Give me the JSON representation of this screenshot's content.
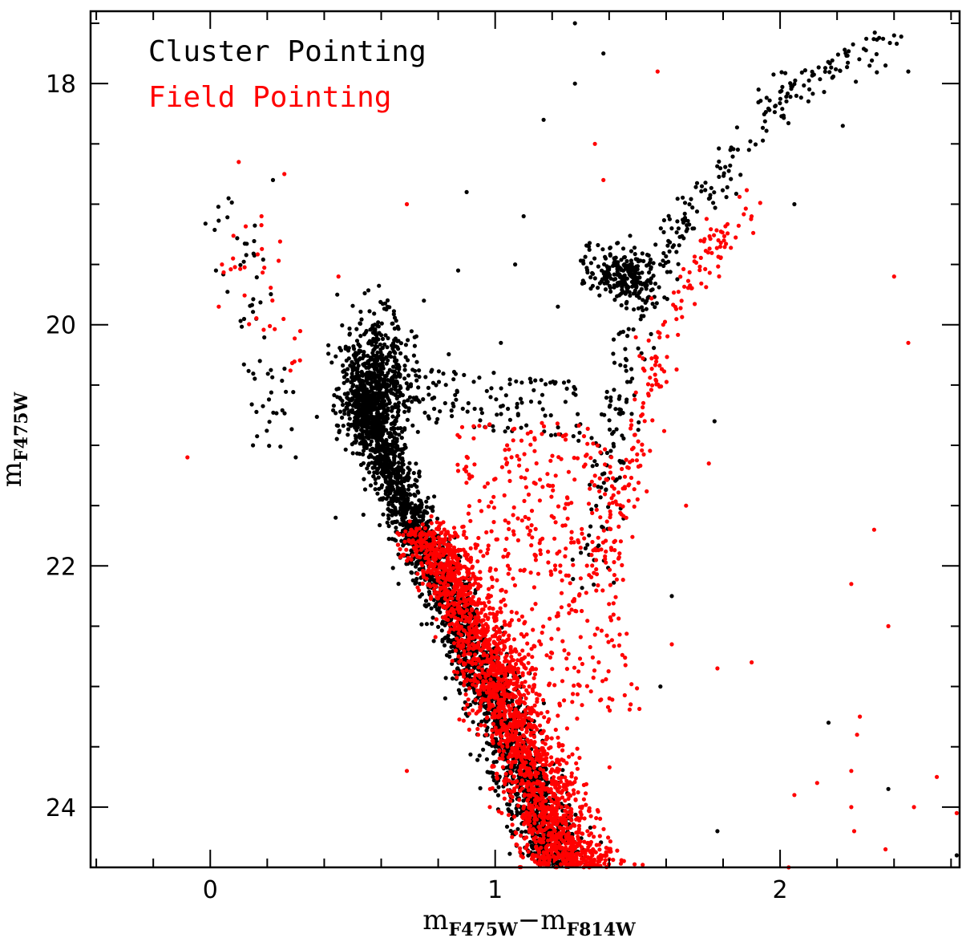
{
  "chart_data": {
    "type": "scatter",
    "xlabel": "mF475W−mF814W",
    "ylabel": "mF475W",
    "xlabel_parts": {
      "m1": "m",
      "s1": "F475W",
      "minus": "−",
      "m2": "m",
      "s2": "F814W"
    },
    "ylabel_parts": {
      "m": "m",
      "s": "F475W"
    },
    "xlim": [
      -0.42,
      2.63
    ],
    "ylim": [
      24.5,
      17.4
    ],
    "y_inverted": true,
    "xticks_major": [
      0,
      1,
      2
    ],
    "xtick_labels": [
      "0",
      "1",
      "2"
    ],
    "xticks_minor": [
      -0.4,
      -0.2,
      0.2,
      0.4,
      0.6,
      0.8,
      1.2,
      1.4,
      1.6,
      1.8,
      2.2,
      2.4,
      2.6
    ],
    "yticks_major": [
      18,
      20,
      22,
      24
    ],
    "ytick_labels": [
      "18",
      "20",
      "22",
      "24"
    ],
    "yticks_minor": [
      17.5,
      18.5,
      19,
      19.5,
      20.5,
      21,
      21.5,
      22.5,
      23,
      23.5,
      24.5
    ],
    "grid": false,
    "legend_position": "top-left",
    "series": [
      {
        "name": "Cluster Pointing",
        "color": "#000000",
        "features": {
          "main_sequence_ridge": [
            [
              0.52,
              20.55
            ],
            [
              0.6,
              21.0
            ],
            [
              0.68,
              21.5
            ],
            [
              0.78,
              22.0
            ],
            [
              0.88,
              22.5
            ],
            [
              0.98,
              23.0
            ],
            [
              1.06,
              23.5
            ],
            [
              1.14,
              24.0
            ],
            [
              1.22,
              24.5
            ]
          ],
          "turnoff_clump": {
            "center": [
              0.58,
              20.5
            ],
            "spread": [
              0.1,
              0.35
            ]
          },
          "red_clump": {
            "center": [
              1.47,
              19.6
            ],
            "spread": [
              0.05,
              0.1
            ]
          },
          "red_giant_branch": [
            [
              1.32,
              22.2
            ],
            [
              1.38,
              21.5
            ],
            [
              1.42,
              21.0
            ],
            [
              1.45,
              20.5
            ],
            [
              1.49,
              20.0
            ],
            [
              1.56,
              19.6
            ],
            [
              1.63,
              19.3
            ],
            [
              1.7,
              19.0
            ],
            [
              1.78,
              18.8
            ],
            [
              1.88,
              18.5
            ],
            [
              2.0,
              18.1
            ],
            [
              2.12,
              17.95
            ],
            [
              2.25,
              17.75
            ],
            [
              2.4,
              17.6
            ]
          ],
          "horizontal_branch": [
            [
              0.05,
              19.0
            ],
            [
              0.12,
              19.5
            ],
            [
              0.16,
              20.0
            ],
            [
              0.2,
              20.5
            ],
            [
              0.26,
              20.9
            ]
          ]
        },
        "points": [
          [
            1.28,
            17.5
          ],
          [
            1.38,
            17.75
          ],
          [
            2.4,
            17.6
          ],
          [
            2.37,
            17.85
          ],
          [
            2.45,
            17.9
          ],
          [
            1.28,
            18.0
          ],
          [
            2.22,
            18.35
          ],
          [
            1.17,
            18.3
          ],
          [
            0.9,
            18.9
          ],
          [
            1.1,
            19.1
          ],
          [
            0.02,
            19.55
          ],
          [
            0.22,
            18.8
          ],
          [
            1.07,
            19.5
          ],
          [
            0.87,
            19.55
          ],
          [
            1.22,
            19.85
          ],
          [
            2.05,
            19.0
          ],
          [
            1.02,
            20.15
          ],
          [
            0.75,
            19.8
          ],
          [
            0.48,
            20.2
          ],
          [
            1.77,
            20.8
          ],
          [
            1.62,
            22.25
          ],
          [
            1.58,
            23.0
          ],
          [
            2.17,
            23.3
          ],
          [
            2.38,
            23.85
          ],
          [
            1.78,
            24.2
          ],
          [
            2.62,
            24.4
          ],
          [
            2.28,
            24.55
          ],
          [
            0.15,
            21.0
          ],
          [
            0.3,
            21.1
          ],
          [
            0.44,
            21.6
          ]
        ]
      },
      {
        "name": "Field Pointing",
        "color": "#ff0000",
        "features": {
          "main_sequence_ridge": [
            [
              0.72,
              21.7
            ],
            [
              0.84,
              22.2
            ],
            [
              0.95,
              22.8
            ],
            [
              1.04,
              23.3
            ],
            [
              1.12,
              23.8
            ],
            [
              1.2,
              24.3
            ],
            [
              1.25,
              24.5
            ]
          ],
          "red_giant_branch": [
            [
              1.35,
              22.0
            ],
            [
              1.45,
              21.5
            ],
            [
              1.5,
              21.0
            ],
            [
              1.55,
              20.5
            ],
            [
              1.6,
              20.0
            ],
            [
              1.7,
              19.6
            ],
            [
              1.78,
              19.3
            ],
            [
              1.88,
              19.0
            ]
          ],
          "horizontal_branch": [
            [
              0.08,
              19.5
            ],
            [
              0.15,
              19.2
            ],
            [
              0.22,
              20.0
            ],
            [
              0.3,
              20.2
            ]
          ]
        },
        "points": [
          [
            1.57,
            17.9
          ],
          [
            1.35,
            18.5
          ],
          [
            1.38,
            18.8
          ],
          [
            0.1,
            18.65
          ],
          [
            0.26,
            18.75
          ],
          [
            0.69,
            19.0
          ],
          [
            0.18,
            19.1
          ],
          [
            0.08,
            19.45
          ],
          [
            0.45,
            19.6
          ],
          [
            0.03,
            19.85
          ],
          [
            2.4,
            19.6
          ],
          [
            2.45,
            20.15
          ],
          [
            -0.08,
            21.1
          ],
          [
            1.75,
            21.15
          ],
          [
            1.67,
            21.5
          ],
          [
            2.33,
            21.7
          ],
          [
            2.25,
            22.15
          ],
          [
            2.38,
            22.5
          ],
          [
            1.9,
            22.8
          ],
          [
            2.28,
            23.25
          ],
          [
            2.27,
            23.4
          ],
          [
            2.25,
            23.7
          ],
          [
            0.69,
            23.7
          ],
          [
            2.13,
            23.8
          ],
          [
            2.55,
            23.75
          ],
          [
            2.05,
            23.9
          ],
          [
            2.25,
            24.0
          ],
          [
            2.47,
            24.0
          ],
          [
            2.26,
            24.2
          ],
          [
            2.37,
            24.35
          ],
          [
            2.03,
            24.5
          ],
          [
            1.62,
            22.65
          ],
          [
            1.78,
            22.85
          ],
          [
            2.62,
            24.05
          ]
        ]
      }
    ]
  }
}
